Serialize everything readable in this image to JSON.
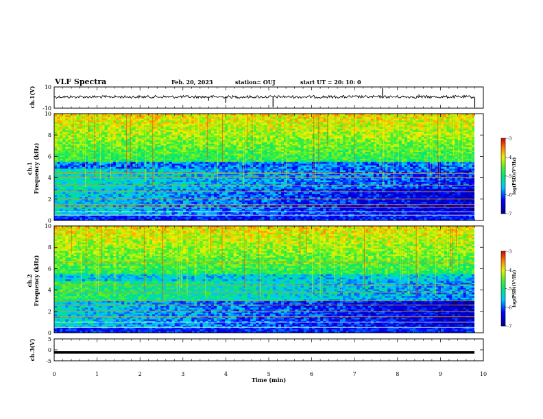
{
  "header": {
    "title": "VLF Spectra",
    "date": "Feb. 20, 2023",
    "station": "station= OUJ",
    "start_ut": "start  UT =  20: 10: 0"
  },
  "chart_data": [
    {
      "type": "line",
      "panel": "ch1-waveform",
      "ylabel": "ch.1(V)",
      "ylim": [
        -10,
        10
      ],
      "yticks": [
        "10",
        "-10"
      ],
      "xlim": [
        0,
        10
      ],
      "baseline_value": 0,
      "spikes": [
        {
          "x": 3.6,
          "y": -3
        },
        {
          "x": 4.0,
          "y": -5
        },
        {
          "x": 5.1,
          "y": -9
        },
        {
          "x": 7.65,
          "y": 9
        },
        {
          "x": 8.5,
          "y": 3
        },
        {
          "x": 9.8,
          "y": -9
        }
      ]
    },
    {
      "type": "heatmap",
      "panel": "ch1-spectrogram",
      "ylabel": "ch.1\nFrequency (kHz)",
      "ylabel_lines": [
        "ch.1",
        "Frequency (kHz)"
      ],
      "ylim": [
        0,
        10
      ],
      "yticks": [
        "0",
        "2",
        "4",
        "6",
        "8",
        "10"
      ],
      "xlim": [
        0,
        10
      ],
      "colorbar": {
        "label": "log(PSD)(V²/Hz)",
        "range": [
          -7,
          -3
        ],
        "ticks": [
          "-3",
          "-4",
          "-5",
          "-6",
          "-7"
        ]
      }
    },
    {
      "type": "heatmap",
      "panel": "ch2-spectrogram",
      "ylabel": "ch.2\nFrequency (kHz)",
      "ylabel_lines": [
        "ch.2",
        "Frequency (kHz)"
      ],
      "ylim": [
        0,
        10
      ],
      "yticks": [
        "0",
        "2",
        "4",
        "6",
        "8",
        "10"
      ],
      "xlim": [
        0,
        10
      ],
      "colorbar": {
        "label": "log(PSD)(V²/Hz)",
        "range": [
          -7,
          -3
        ],
        "ticks": [
          "-3",
          "-4",
          "-5",
          "-6",
          "-7"
        ]
      }
    },
    {
      "type": "line",
      "panel": "ch3-waveform",
      "ylabel": "ch.3(V)",
      "ylim": [
        -5,
        5
      ],
      "yticks": [
        "5",
        "0",
        "-5"
      ],
      "xlim": [
        0,
        10
      ],
      "baseline_value": -1.2
    }
  ],
  "xaxis": {
    "label": "Time (min)",
    "ticks": [
      "0",
      "1",
      "2",
      "3",
      "4",
      "5",
      "6",
      "7",
      "8",
      "9",
      "10"
    ],
    "range": [
      0,
      10
    ]
  },
  "colors": {
    "frame": "#000000",
    "background": "#ffffff"
  }
}
